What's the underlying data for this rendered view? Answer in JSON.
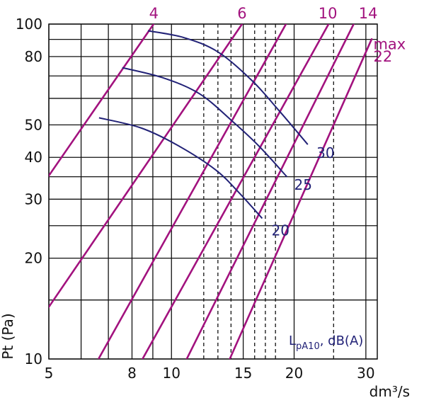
{
  "chart_data": {
    "type": "line",
    "xlabel": "dm³/s",
    "ylabel": "Pt (Pa)",
    "x_scale": "log",
    "y_scale": "log",
    "xlim": [
      5,
      32
    ],
    "ylim": [
      10,
      100
    ],
    "x_ticks": [
      5,
      8,
      10,
      15,
      20,
      30
    ],
    "y_ticks": [
      10,
      20,
      30,
      40,
      50,
      80,
      100
    ],
    "x_gridlines": [
      5,
      6,
      7,
      8,
      9,
      10,
      12,
      13,
      14,
      15,
      16,
      17,
      18,
      20,
      25,
      30
    ],
    "x_dashed_gridlines": [
      12,
      13,
      14,
      16,
      17,
      18,
      25
    ],
    "y_gridlines": [
      10,
      15,
      20,
      25,
      30,
      35,
      40,
      50,
      60,
      70,
      80,
      90,
      100
    ],
    "grid": true,
    "legend_text": {
      "base": "L",
      "sub": "pA10",
      "rest": ", dB(A)"
    },
    "colors": {
      "sound": "#a2127e",
      "fan": "#222277",
      "grid": "#111111"
    },
    "sound_lines": [
      {
        "label": "4",
        "points": [
          [
            4.43,
            28.5
          ],
          [
            9.04,
            100
          ]
        ]
      },
      {
        "label": "6",
        "points": [
          [
            4.78,
            13.2
          ],
          [
            14.9,
            100
          ]
        ]
      },
      {
        "label": "",
        "points": [
          [
            6.62,
            10
          ],
          [
            19.1,
            100
          ]
        ]
      },
      {
        "label": "",
        "points": [
          [
            8.49,
            10
          ],
          [
            24.3,
            100
          ]
        ]
      },
      {
        "label": "10",
        "points": [
          [
            10.9,
            10
          ],
          [
            28.0,
            100
          ]
        ]
      },
      {
        "label": "14",
        "points": [
          [
            13.9,
            10
          ],
          [
            31.0,
            90.2
          ]
        ]
      }
    ],
    "sound_line_labels": [
      {
        "text": "4",
        "x": 9.05,
        "y": 100
      },
      {
        "text": "6",
        "x": 14.9,
        "y": 100
      },
      {
        "text": "10",
        "x": 24.2,
        "y": 100
      },
      {
        "text": "14",
        "x": 30.4,
        "y": 100
      },
      {
        "text": "max",
        "x": 31.3,
        "y": 87
      },
      {
        "text": "22",
        "x": 31.3,
        "y": 80
      }
    ],
    "fan_curves": [
      {
        "name": "30",
        "points": [
          [
            8.75,
            95.5
          ],
          [
            10.7,
            91.2
          ],
          [
            13.0,
            82.6
          ],
          [
            15.8,
            67.6
          ],
          [
            18.4,
            55.0
          ],
          [
            21.6,
            43.7
          ]
        ]
      },
      {
        "name": "25",
        "points": [
          [
            7.57,
            74.1
          ],
          [
            9.5,
            69.2
          ],
          [
            11.7,
            62.0
          ],
          [
            14.1,
            51.3
          ],
          [
            16.4,
            43.2
          ],
          [
            19.2,
            35.0
          ]
        ]
      },
      {
        "name": "20",
        "points": [
          [
            6.64,
            52.5
          ],
          [
            8.4,
            49.0
          ],
          [
            10.3,
            43.6
          ],
          [
            12.8,
            36.8
          ],
          [
            14.6,
            31.5
          ],
          [
            16.7,
            26.3
          ]
        ]
      }
    ],
    "fan_curve_labels": [
      {
        "text": "30",
        "x": 22.7,
        "y": 41.2
      },
      {
        "text": "25",
        "x": 20.0,
        "y": 33.1
      },
      {
        "text": "20",
        "x": 17.6,
        "y": 24.2
      }
    ]
  }
}
